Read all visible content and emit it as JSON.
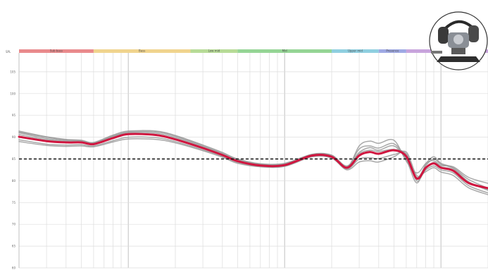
{
  "chart_data": {
    "type": "line",
    "title": "",
    "xlabel": "",
    "ylabel": "SPL",
    "x_scale": "log",
    "xlim": [
      20,
      20000
    ],
    "ylim": [
      60,
      110
    ],
    "y_ticks": [
      60,
      65,
      70,
      75,
      80,
      85,
      90,
      95,
      100,
      105
    ],
    "y_tick_labels": [
      "60",
      "65",
      "70",
      "75",
      "80",
      "85",
      "90",
      "95",
      "100",
      "105"
    ],
    "grid": true,
    "bands": [
      {
        "label": "Sub bass",
        "from": 20,
        "to": 60,
        "color": "#e98a8c"
      },
      {
        "label": "Bass",
        "from": 60,
        "to": 250,
        "color": "#f0d48e"
      },
      {
        "label": "Low mid",
        "from": 250,
        "to": 500,
        "color": "#b7db97"
      },
      {
        "label": "Mid",
        "from": 500,
        "to": 2000,
        "color": "#95d595"
      },
      {
        "label": "Upper mid",
        "from": 2000,
        "to": 4000,
        "color": "#8fcfe0"
      },
      {
        "label": "Presence",
        "from": 4000,
        "to": 6000,
        "color": "#9fa9e4"
      },
      {
        "label": "",
        "from": 6000,
        "to": 20000,
        "color": "#c8a4dc"
      }
    ],
    "reference_level": 85,
    "series": [
      {
        "role": "average",
        "color": "#d0153f",
        "x": [
          20,
          30,
          40,
          50,
          60,
          80,
          100,
          150,
          200,
          300,
          400,
          500,
          700,
          1000,
          1500,
          2000,
          2500,
          3000,
          3500,
          4000,
          5000,
          6000,
          7000,
          8000,
          9000,
          10000,
          12000,
          15000,
          20000
        ],
        "y": [
          90.1,
          89.1,
          88.8,
          88.8,
          88.4,
          89.8,
          90.7,
          90.5,
          89.5,
          87.5,
          85.9,
          84.5,
          83.5,
          83.6,
          85.8,
          85.5,
          83.0,
          85.8,
          86.6,
          86.2,
          87.0,
          85.6,
          80.5,
          83.0,
          84.0,
          83.0,
          82.3,
          79.5,
          78.3
        ]
      },
      {
        "role": "sample",
        "color": "#9a9a9a",
        "x": [
          20,
          30,
          40,
          50,
          60,
          80,
          100,
          150,
          200,
          300,
          400,
          500,
          700,
          1000,
          1500,
          2000,
          2500,
          3000,
          3500,
          4000,
          5000,
          6000,
          7000,
          8000,
          9000,
          10000,
          12000,
          15000,
          20000
        ],
        "y": [
          91.2,
          90.0,
          89.4,
          89.2,
          88.7,
          90.3,
          91.2,
          91.2,
          90.2,
          88.0,
          86.3,
          84.9,
          83.8,
          83.9,
          86.0,
          85.8,
          82.9,
          88.0,
          89.1,
          88.6,
          89.3,
          84.5,
          81.8,
          84.0,
          85.5,
          84.0,
          83.0,
          80.3,
          78.3
        ]
      },
      {
        "role": "sample",
        "color": "#9a9a9a",
        "x": [
          20,
          30,
          40,
          50,
          60,
          80,
          100,
          150,
          200,
          300,
          400,
          500,
          700,
          1000,
          1500,
          2000,
          2500,
          3000,
          3500,
          4000,
          5000,
          6000,
          7000,
          8000,
          9000,
          10000,
          12000,
          15000,
          20000
        ],
        "y": [
          91.0,
          89.7,
          89.2,
          89.0,
          88.6,
          90.2,
          91.0,
          90.9,
          89.9,
          87.8,
          86.1,
          84.7,
          83.7,
          83.8,
          85.9,
          85.7,
          83.2,
          87.3,
          88.0,
          87.5,
          88.5,
          85.0,
          80.8,
          83.5,
          85.0,
          83.8,
          82.8,
          79.8,
          77.8
        ]
      },
      {
        "role": "sample",
        "color": "#9a9a9a",
        "x": [
          20,
          30,
          40,
          50,
          60,
          80,
          100,
          150,
          200,
          300,
          400,
          500,
          700,
          1000,
          1500,
          2000,
          2500,
          3000,
          3500,
          4000,
          5000,
          6000,
          7000,
          8000,
          9000,
          10000,
          12000,
          15000,
          20000
        ],
        "y": [
          90.6,
          89.4,
          89.0,
          88.9,
          88.5,
          90.0,
          90.8,
          90.6,
          89.6,
          87.6,
          86.0,
          84.6,
          83.6,
          83.7,
          85.8,
          85.6,
          83.0,
          86.2,
          87.0,
          86.7,
          87.2,
          86.0,
          80.0,
          82.8,
          84.2,
          83.2,
          82.5,
          79.6,
          78.0
        ]
      },
      {
        "role": "sample",
        "color": "#9a9a9a",
        "x": [
          20,
          30,
          40,
          50,
          60,
          80,
          100,
          150,
          200,
          300,
          400,
          500,
          700,
          1000,
          1500,
          2000,
          2500,
          3000,
          3500,
          4000,
          5000,
          6000,
          7000,
          8000,
          9000,
          10000,
          12000,
          15000,
          20000
        ],
        "y": [
          89.4,
          88.4,
          88.2,
          88.3,
          88.0,
          89.2,
          90.0,
          89.9,
          89.0,
          87.1,
          85.6,
          84.2,
          83.3,
          83.4,
          85.6,
          85.3,
          82.7,
          85.0,
          85.3,
          85.1,
          86.0,
          86.2,
          80.6,
          82.5,
          83.4,
          82.5,
          81.8,
          78.9,
          77.2
        ]
      },
      {
        "role": "sample",
        "color": "#9a9a9a",
        "x": [
          20,
          30,
          40,
          50,
          60,
          80,
          100,
          150,
          200,
          300,
          400,
          500,
          700,
          1000,
          1500,
          2000,
          2500,
          3000,
          3500,
          4000,
          5000,
          6000,
          7000,
          8000,
          9000,
          10000,
          12000,
          15000,
          20000
        ],
        "y": [
          89.0,
          88.1,
          87.9,
          88.0,
          87.8,
          88.9,
          89.6,
          89.5,
          88.7,
          86.9,
          85.4,
          84.0,
          83.2,
          83.3,
          85.5,
          85.2,
          82.5,
          84.3,
          84.6,
          84.3,
          85.5,
          86.6,
          81.2,
          82.1,
          83.0,
          82.0,
          81.2,
          78.4,
          76.8
        ]
      },
      {
        "role": "sample",
        "color": "#9a9a9a",
        "x": [
          20,
          30,
          40,
          50,
          60,
          80,
          100,
          150,
          200,
          300,
          400,
          500,
          700,
          1000,
          1500,
          2000,
          2500,
          3000,
          3500,
          4000,
          5000,
          6000,
          7000,
          8000,
          9000,
          10000,
          12000,
          15000,
          20000
        ],
        "y": [
          91.4,
          90.1,
          89.5,
          89.3,
          88.8,
          90.5,
          91.4,
          91.4,
          90.4,
          88.2,
          86.5,
          85.0,
          83.9,
          84.0,
          86.1,
          85.9,
          83.4,
          86.5,
          87.6,
          87.0,
          88.0,
          84.8,
          79.5,
          83.8,
          84.6,
          83.5,
          83.2,
          80.8,
          79.4
        ]
      }
    ]
  }
}
